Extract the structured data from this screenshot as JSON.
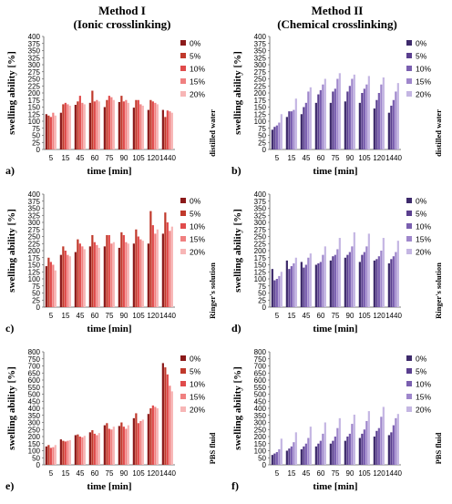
{
  "header": {
    "method1_line1": "Method I",
    "method1_line2": "(Ionic crosslinking)",
    "method2_line1": "Method II",
    "method2_line2": "(Chemical crosslinking)"
  },
  "colors": {
    "ionic": [
      "#8b1a1a",
      "#c0392b",
      "#e04b4b",
      "#f08080",
      "#f7b6b6"
    ],
    "chemical": [
      "#3d2a6b",
      "#5a3f8f",
      "#7a5fb0",
      "#9f87cc",
      "#c4b6e3"
    ]
  },
  "chart_data": [
    {
      "panel": "a)",
      "type": "bar",
      "medium": "distilled water",
      "xlabel": "time [min]",
      "ylabel": "swelling ability [%]",
      "ylim": [
        0,
        400
      ],
      "yticks": [
        0,
        25,
        50,
        75,
        100,
        125,
        150,
        175,
        200,
        225,
        250,
        275,
        300,
        325,
        350,
        375,
        400
      ],
      "categories": [
        "5",
        "15",
        "45",
        "60",
        "75",
        "90",
        "105",
        "120",
        "1440"
      ],
      "series": [
        {
          "name": "0%",
          "values": [
            125,
            130,
            158,
            165,
            150,
            168,
            148,
            140,
            140
          ]
        },
        {
          "name": "5%",
          "values": [
            120,
            160,
            170,
            208,
            175,
            190,
            175,
            175,
            115
          ]
        },
        {
          "name": "10%",
          "values": [
            115,
            165,
            190,
            170,
            190,
            170,
            175,
            170,
            138
          ]
        },
        {
          "name": "15%",
          "values": [
            130,
            160,
            165,
            175,
            185,
            175,
            160,
            165,
            135
          ]
        },
        {
          "name": "20%",
          "values": [
            120,
            155,
            160,
            170,
            175,
            165,
            155,
            160,
            130
          ]
        }
      ]
    },
    {
      "panel": "b)",
      "type": "bar",
      "medium": "distilled water",
      "xlabel": "time [min]",
      "ylabel": "swelling ability [%]",
      "ylim": [
        0,
        400
      ],
      "yticks": [
        0,
        25,
        50,
        75,
        100,
        125,
        150,
        175,
        200,
        225,
        250,
        275,
        300,
        325,
        350,
        375,
        400
      ],
      "categories": [
        "5",
        "15",
        "45",
        "60",
        "75",
        "90",
        "105",
        "120",
        "1440"
      ],
      "series": [
        {
          "name": "0%",
          "values": [
            70,
            115,
            125,
            165,
            165,
            170,
            165,
            145,
            130
          ]
        },
        {
          "name": "5%",
          "values": [
            80,
            135,
            150,
            195,
            205,
            205,
            200,
            175,
            155
          ]
        },
        {
          "name": "10%",
          "values": [
            85,
            135,
            165,
            210,
            215,
            225,
            215,
            200,
            175
          ]
        },
        {
          "name": "15%",
          "values": [
            95,
            140,
            205,
            230,
            250,
            250,
            230,
            230,
            205
          ]
        },
        {
          "name": "20%",
          "values": [
            125,
            180,
            220,
            250,
            270,
            265,
            260,
            255,
            235
          ]
        }
      ]
    },
    {
      "panel": "c)",
      "type": "bar",
      "medium": "Ringer's solution",
      "xlabel": "time [min]",
      "ylabel": "swelling ability [%]",
      "ylim": [
        0,
        400
      ],
      "yticks": [
        0,
        25,
        50,
        75,
        100,
        125,
        150,
        175,
        200,
        225,
        250,
        275,
        300,
        325,
        350,
        375,
        400
      ],
      "categories": [
        "5",
        "15",
        "45",
        "60",
        "75",
        "90",
        "105",
        "120",
        "1440"
      ],
      "series": [
        {
          "name": "0%",
          "values": [
            145,
            185,
            195,
            215,
            215,
            210,
            225,
            225,
            260
          ]
        },
        {
          "name": "5%",
          "values": [
            175,
            215,
            240,
            255,
            255,
            265,
            275,
            340,
            335
          ]
        },
        {
          "name": "10%",
          "values": [
            160,
            200,
            225,
            230,
            255,
            255,
            250,
            290,
            300
          ]
        },
        {
          "name": "15%",
          "values": [
            150,
            185,
            215,
            220,
            225,
            230,
            240,
            260,
            270
          ]
        },
        {
          "name": "20%",
          "values": [
            130,
            180,
            205,
            210,
            230,
            225,
            235,
            275,
            285
          ]
        }
      ]
    },
    {
      "panel": "d)",
      "type": "bar",
      "medium": "Ringer's solution",
      "xlabel": "time [min]",
      "ylabel": "swelling ability [%]",
      "ylim": [
        0,
        400
      ],
      "yticks": [
        0,
        25,
        50,
        75,
        100,
        125,
        150,
        175,
        200,
        225,
        250,
        275,
        300,
        325,
        350,
        375,
        400
      ],
      "categories": [
        "5",
        "15",
        "45",
        "60",
        "75",
        "90",
        "105",
        "120",
        "1440"
      ],
      "series": [
        {
          "name": "0%",
          "values": [
            135,
            165,
            160,
            150,
            165,
            175,
            160,
            165,
            155
          ]
        },
        {
          "name": "5%",
          "values": [
            95,
            135,
            140,
            155,
            180,
            185,
            185,
            170,
            170
          ]
        },
        {
          "name": "10%",
          "values": [
            100,
            145,
            150,
            160,
            185,
            195,
            195,
            180,
            180
          ]
        },
        {
          "name": "15%",
          "values": [
            110,
            155,
            175,
            185,
            205,
            215,
            215,
            200,
            195
          ]
        },
        {
          "name": "20%",
          "values": [
            125,
            175,
            190,
            215,
            245,
            265,
            260,
            245,
            235
          ]
        }
      ]
    },
    {
      "panel": "e)",
      "type": "bar",
      "medium": "PBS fluid",
      "xlabel": "time [min]",
      "ylabel": "swelling ability [%]",
      "ylim": [
        0,
        800
      ],
      "yticks": [
        0,
        50,
        100,
        150,
        200,
        250,
        300,
        350,
        400,
        450,
        500,
        550,
        600,
        650,
        700,
        750,
        800
      ],
      "categories": [
        "5",
        "15",
        "45",
        "60",
        "75",
        "90",
        "105",
        "120",
        "1440"
      ],
      "series": [
        {
          "name": "0%",
          "values": [
            130,
            180,
            210,
            230,
            280,
            275,
            330,
            360,
            720
          ]
        },
        {
          "name": "5%",
          "values": [
            140,
            170,
            215,
            245,
            295,
            300,
            365,
            400,
            690
          ]
        },
        {
          "name": "10%",
          "values": [
            120,
            165,
            200,
            220,
            255,
            270,
            295,
            420,
            640
          ]
        },
        {
          "name": "15%",
          "values": [
            125,
            170,
            195,
            210,
            250,
            255,
            310,
            410,
            560
          ]
        },
        {
          "name": "20%",
          "values": [
            140,
            175,
            205,
            225,
            270,
            280,
            320,
            400,
            520
          ]
        }
      ]
    },
    {
      "panel": "f)",
      "type": "bar",
      "medium": "PBS fluid",
      "xlabel": "time [min]",
      "ylabel": "swelling ability [%]",
      "ylim": [
        0,
        800
      ],
      "yticks": [
        0,
        50,
        100,
        150,
        200,
        250,
        300,
        350,
        400,
        450,
        500,
        550,
        600,
        650,
        700,
        750,
        800
      ],
      "categories": [
        "5",
        "15",
        "45",
        "60",
        "75",
        "90",
        "105",
        "120",
        "1440"
      ],
      "series": [
        {
          "name": "0%",
          "values": [
            70,
            100,
            110,
            130,
            150,
            170,
            190,
            200,
            210
          ]
        },
        {
          "name": "5%",
          "values": [
            80,
            115,
            130,
            150,
            170,
            200,
            220,
            240,
            230
          ]
        },
        {
          "name": "10%",
          "values": [
            90,
            130,
            150,
            170,
            200,
            220,
            250,
            260,
            280
          ]
        },
        {
          "name": "15%",
          "values": [
            110,
            160,
            190,
            220,
            260,
            290,
            310,
            340,
            330
          ]
        },
        {
          "name": "20%",
          "values": [
            185,
            230,
            270,
            300,
            330,
            355,
            380,
            410,
            360
          ]
        }
      ]
    }
  ]
}
